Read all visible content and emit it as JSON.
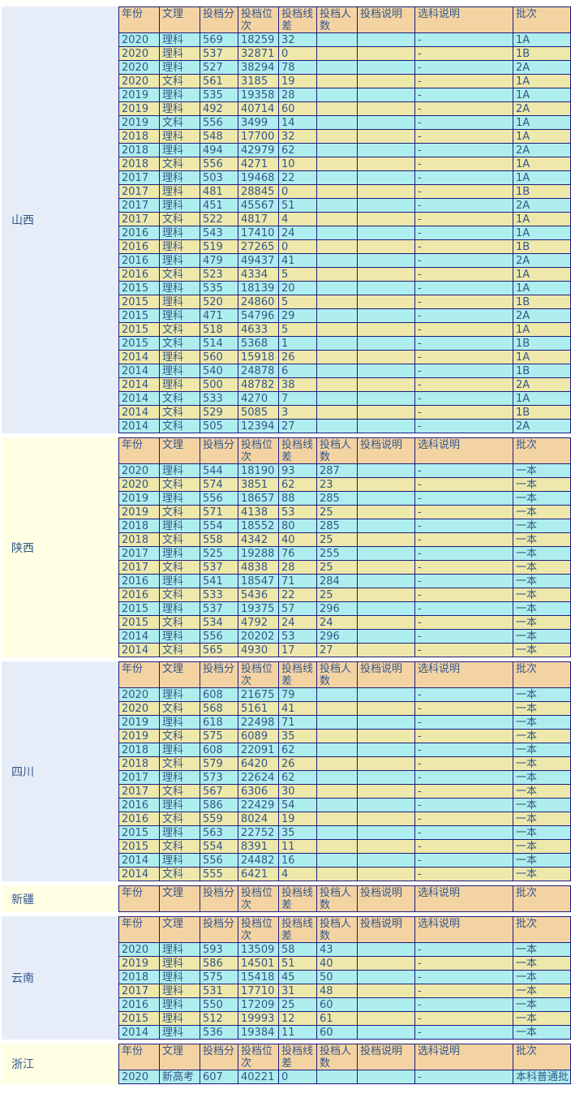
{
  "columns": [
    "年份",
    "文理",
    "投档分",
    "投档位次",
    "投档线差",
    "投档人数",
    "投档说明",
    "选科说明",
    "批次"
  ],
  "colors": {
    "header_bg": "#F4D3A3",
    "row_cyan": "#AFEEEE",
    "row_yellow": "#EEE8AA",
    "border": "#1B1B7E",
    "text": "#33568A",
    "province_blue": "#E7EDF8",
    "province_yellow": "#FFFFE3"
  },
  "sections": [
    {
      "province": "山西",
      "tint": "blue",
      "rows": [
        [
          "2020",
          "理科",
          "569",
          "18259",
          "32",
          "",
          "",
          "-",
          "1A"
        ],
        [
          "2020",
          "理科",
          "537",
          "32871",
          "0",
          "",
          "",
          "-",
          "1B"
        ],
        [
          "2020",
          "理科",
          "527",
          "38294",
          "78",
          "",
          "",
          "-",
          "2A"
        ],
        [
          "2020",
          "文科",
          "561",
          "3185",
          "19",
          "",
          "",
          "-",
          "1A"
        ],
        [
          "2019",
          "理科",
          "535",
          "19358",
          "28",
          "",
          "",
          "-",
          "1A"
        ],
        [
          "2019",
          "理科",
          "492",
          "40714",
          "60",
          "",
          "",
          "-",
          "2A"
        ],
        [
          "2019",
          "文科",
          "556",
          "3499",
          "14",
          "",
          "",
          "-",
          "1A"
        ],
        [
          "2018",
          "理科",
          "548",
          "17700",
          "32",
          "",
          "",
          "-",
          "1A"
        ],
        [
          "2018",
          "理科",
          "494",
          "42979",
          "62",
          "",
          "",
          "-",
          "2A"
        ],
        [
          "2018",
          "文科",
          "556",
          "4271",
          "10",
          "",
          "",
          "-",
          "1A"
        ],
        [
          "2017",
          "理科",
          "503",
          "19468",
          "22",
          "",
          "",
          "-",
          "1A"
        ],
        [
          "2017",
          "理科",
          "481",
          "28845",
          "0",
          "",
          "",
          "-",
          "1B"
        ],
        [
          "2017",
          "理科",
          "451",
          "45567",
          "51",
          "",
          "",
          "-",
          "2A"
        ],
        [
          "2017",
          "文科",
          "522",
          "4817",
          "4",
          "",
          "",
          "-",
          "1A"
        ],
        [
          "2016",
          "理科",
          "543",
          "17410",
          "24",
          "",
          "",
          "-",
          "1A"
        ],
        [
          "2016",
          "理科",
          "519",
          "27265",
          "0",
          "",
          "",
          "-",
          "1B"
        ],
        [
          "2016",
          "理科",
          "479",
          "49437",
          "41",
          "",
          "",
          "-",
          "2A"
        ],
        [
          "2016",
          "文科",
          "523",
          "4334",
          "5",
          "",
          "",
          "-",
          "1A"
        ],
        [
          "2015",
          "理科",
          "535",
          "18139",
          "20",
          "",
          "",
          "-",
          "1A"
        ],
        [
          "2015",
          "理科",
          "520",
          "24860",
          "5",
          "",
          "",
          "-",
          "1B"
        ],
        [
          "2015",
          "理科",
          "471",
          "54796",
          "29",
          "",
          "",
          "-",
          "2A"
        ],
        [
          "2015",
          "文科",
          "518",
          "4633",
          "5",
          "",
          "",
          "-",
          "1A"
        ],
        [
          "2015",
          "文科",
          "514",
          "5368",
          "1",
          "",
          "",
          "-",
          "1B"
        ],
        [
          "2014",
          "理科",
          "560",
          "15918",
          "26",
          "",
          "",
          "-",
          "1A"
        ],
        [
          "2014",
          "理科",
          "540",
          "24878",
          "6",
          "",
          "",
          "-",
          "1B"
        ],
        [
          "2014",
          "理科",
          "500",
          "48782",
          "38",
          "",
          "",
          "-",
          "2A"
        ],
        [
          "2014",
          "文科",
          "533",
          "4270",
          "7",
          "",
          "",
          "-",
          "1A"
        ],
        [
          "2014",
          "文科",
          "529",
          "5085",
          "3",
          "",
          "",
          "-",
          "1B"
        ],
        [
          "2014",
          "文科",
          "505",
          "12394",
          "27",
          "",
          "",
          "-",
          "2A"
        ]
      ]
    },
    {
      "province": "陕西",
      "tint": "yellow",
      "rows": [
        [
          "2020",
          "理科",
          "544",
          "18190",
          "93",
          "287",
          "",
          "-",
          "一本"
        ],
        [
          "2020",
          "文科",
          "574",
          "3851",
          "62",
          "23",
          "",
          "-",
          "一本"
        ],
        [
          "2019",
          "理科",
          "556",
          "18657",
          "88",
          "285",
          "",
          "-",
          "一本"
        ],
        [
          "2019",
          "文科",
          "571",
          "4138",
          "53",
          "25",
          "",
          "-",
          "一本"
        ],
        [
          "2018",
          "理科",
          "554",
          "18552",
          "80",
          "285",
          "",
          "-",
          "一本"
        ],
        [
          "2018",
          "文科",
          "558",
          "4342",
          "40",
          "25",
          "",
          "-",
          "一本"
        ],
        [
          "2017",
          "理科",
          "525",
          "19288",
          "76",
          "255",
          "",
          "-",
          "一本"
        ],
        [
          "2017",
          "文科",
          "537",
          "4838",
          "28",
          "25",
          "",
          "-",
          "一本"
        ],
        [
          "2016",
          "理科",
          "541",
          "18547",
          "71",
          "284",
          "",
          "-",
          "一本"
        ],
        [
          "2016",
          "文科",
          "533",
          "5436",
          "22",
          "25",
          "",
          "-",
          "一本"
        ],
        [
          "2015",
          "理科",
          "537",
          "19375",
          "57",
          "296",
          "",
          "-",
          "一本"
        ],
        [
          "2015",
          "文科",
          "534",
          "4792",
          "24",
          "24",
          "",
          "-",
          "一本"
        ],
        [
          "2014",
          "理科",
          "556",
          "20202",
          "53",
          "296",
          "",
          "-",
          "一本"
        ],
        [
          "2014",
          "文科",
          "565",
          "4930",
          "17",
          "27",
          "",
          "-",
          "一本"
        ]
      ]
    },
    {
      "province": "四川",
      "tint": "blue",
      "rows": [
        [
          "2020",
          "理科",
          "608",
          "21675",
          "79",
          "",
          "",
          "-",
          "一本"
        ],
        [
          "2020",
          "文科",
          "568",
          "5161",
          "41",
          "",
          "",
          "-",
          "一本"
        ],
        [
          "2019",
          "理科",
          "618",
          "22498",
          "71",
          "",
          "",
          "-",
          "一本"
        ],
        [
          "2019",
          "文科",
          "575",
          "6089",
          "35",
          "",
          "",
          "-",
          "一本"
        ],
        [
          "2018",
          "理科",
          "608",
          "22091",
          "62",
          "",
          "",
          "-",
          "一本"
        ],
        [
          "2018",
          "文科",
          "579",
          "6420",
          "26",
          "",
          "",
          "-",
          "一本"
        ],
        [
          "2017",
          "理科",
          "573",
          "22624",
          "62",
          "",
          "",
          "-",
          "一本"
        ],
        [
          "2017",
          "文科",
          "567",
          "6306",
          "30",
          "",
          "",
          "-",
          "一本"
        ],
        [
          "2016",
          "理科",
          "586",
          "22429",
          "54",
          "",
          "",
          "-",
          "一本"
        ],
        [
          "2016",
          "文科",
          "559",
          "8024",
          "19",
          "",
          "",
          "-",
          "一本"
        ],
        [
          "2015",
          "理科",
          "563",
          "22752",
          "35",
          "",
          "",
          "-",
          "一本"
        ],
        [
          "2015",
          "文科",
          "554",
          "8391",
          "11",
          "",
          "",
          "-",
          "一本"
        ],
        [
          "2014",
          "理科",
          "556",
          "24482",
          "16",
          "",
          "",
          "-",
          "一本"
        ],
        [
          "2014",
          "文科",
          "555",
          "6421",
          "4",
          "",
          "",
          "-",
          "一本"
        ]
      ]
    },
    {
      "province": "新疆",
      "tint": "yellow",
      "rows": []
    },
    {
      "province": "云南",
      "tint": "blue",
      "rows": [
        [
          "2020",
          "理科",
          "593",
          "13509",
          "58",
          "43",
          "",
          "-",
          "一本"
        ],
        [
          "2019",
          "理科",
          "586",
          "14501",
          "51",
          "40",
          "",
          "-",
          "一本"
        ],
        [
          "2018",
          "理科",
          "575",
          "15418",
          "45",
          "50",
          "",
          "-",
          "一本"
        ],
        [
          "2017",
          "理科",
          "531",
          "17710",
          "31",
          "48",
          "",
          "-",
          "一本"
        ],
        [
          "2016",
          "理科",
          "550",
          "17209",
          "25",
          "60",
          "",
          "-",
          "一本"
        ],
        [
          "2015",
          "理科",
          "512",
          "19993",
          "12",
          "61",
          "",
          "-",
          "一本"
        ],
        [
          "2014",
          "理科",
          "536",
          "19384",
          "11",
          "60",
          "",
          "-",
          "一本"
        ]
      ]
    },
    {
      "province": "浙江",
      "tint": "yellow",
      "rows": [
        [
          "2020",
          "新高考",
          "607",
          "40221",
          "0",
          "",
          "",
          "-",
          "本科普通批"
        ]
      ]
    }
  ]
}
